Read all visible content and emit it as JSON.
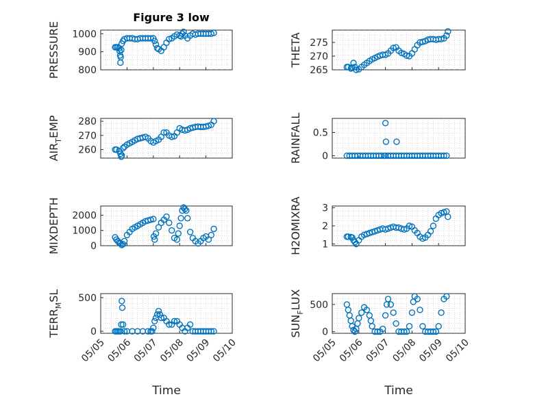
{
  "figure": {
    "title": "Figure 3 low",
    "marker_color": "#0072BD",
    "x_tick_labels": [
      "05/05",
      "05/06",
      "05/07",
      "05/08",
      "05/09",
      "05/10"
    ]
  },
  "chart_data": [
    {
      "type": "scatter",
      "title": "Figure 3 low",
      "ylabel": "PRESSURE",
      "xlabel": "",
      "xlim": [
        "05/05",
        "05/10"
      ],
      "ylim": [
        800,
        1020
      ],
      "yticks": [
        800,
        900,
        1000
      ],
      "grid": true,
      "series": [
        {
          "marker": "circle",
          "x": [
            5.55,
            5.6,
            5.65,
            5.7,
            5.72,
            5.74,
            5.75,
            5.76,
            5.78,
            5.8,
            5.85,
            5.9,
            6.0,
            6.1,
            6.2,
            6.3,
            6.4,
            6.5,
            6.6,
            6.7,
            6.8,
            6.9,
            7.0,
            7.05,
            7.1,
            7.15,
            7.2,
            7.3,
            7.4,
            7.5,
            7.6,
            7.7,
            7.8,
            7.9,
            8.0,
            8.05,
            8.1,
            8.15,
            8.2,
            8.3,
            8.4,
            8.5,
            8.6,
            8.7,
            8.8,
            8.9,
            9.0,
            9.1,
            9.2,
            9.3
          ],
          "y": [
            925,
            925,
            925,
            920,
            905,
            880,
            840,
            870,
            910,
            945,
            960,
            970,
            975,
            975,
            975,
            970,
            970,
            975,
            975,
            975,
            975,
            975,
            975,
            960,
            940,
            920,
            915,
            905,
            925,
            950,
            970,
            975,
            985,
            995,
            990,
            985,
            1000,
            1010,
            990,
            975,
            990,
            1000,
            995,
            1000,
            1000,
            1000,
            1000,
            1000,
            1000,
            1005
          ]
        }
      ]
    },
    {
      "type": "scatter",
      "ylabel": "THETA",
      "xlabel": "",
      "xlim": [
        "05/05",
        "05/10"
      ],
      "ylim": [
        265,
        279.5
      ],
      "yticks": [
        265,
        270,
        275
      ],
      "grid": true,
      "series": [
        {
          "marker": "circle",
          "x": [
            5.55,
            5.6,
            5.7,
            5.75,
            5.8,
            5.85,
            5.9,
            6.0,
            6.1,
            6.2,
            6.3,
            6.4,
            6.5,
            6.6,
            6.7,
            6.8,
            6.9,
            7.0,
            7.1,
            7.2,
            7.3,
            7.4,
            7.5,
            7.6,
            7.7,
            7.8,
            7.9,
            8.0,
            8.1,
            8.2,
            8.3,
            8.4,
            8.5,
            8.6,
            8.7,
            8.8,
            8.9,
            9.0,
            9.1,
            9.2,
            9.3,
            9.35
          ],
          "y": [
            266,
            266,
            265.5,
            265.8,
            267.5,
            266,
            265,
            265.2,
            266,
            266.8,
            267.5,
            268.2,
            268.8,
            269.3,
            269.8,
            270.2,
            270.5,
            270.5,
            271,
            272,
            273,
            273.2,
            272,
            271.2,
            270.8,
            270.2,
            270,
            271,
            272.5,
            274,
            275,
            275.2,
            275.5,
            276,
            276.2,
            276.2,
            276,
            276.2,
            276.2,
            276.5,
            277.5,
            279
          ]
        }
      ]
    },
    {
      "type": "scatter",
      "ylabel": "AIR_TEMP",
      "xlabel": "",
      "xlim": [
        "05/05",
        "05/10"
      ],
      "ylim": [
        254,
        282
      ],
      "yticks": [
        260,
        270,
        280
      ],
      "grid": true,
      "series": [
        {
          "marker": "circle",
          "x": [
            5.55,
            5.6,
            5.7,
            5.75,
            5.78,
            5.8,
            5.85,
            5.9,
            6.0,
            6.1,
            6.2,
            6.3,
            6.4,
            6.5,
            6.6,
            6.7,
            6.8,
            6.9,
            7.0,
            7.1,
            7.2,
            7.3,
            7.4,
            7.5,
            7.6,
            7.7,
            7.8,
            7.9,
            8.0,
            8.1,
            8.2,
            8.3,
            8.4,
            8.5,
            8.6,
            8.7,
            8.8,
            8.9,
            9.0,
            9.1,
            9.2,
            9.3
          ],
          "y": [
            260,
            260,
            259,
            257,
            255,
            256,
            261,
            262,
            263.5,
            264.5,
            265.5,
            266.5,
            267.5,
            268,
            268.5,
            269,
            268,
            266,
            265,
            266,
            267,
            269,
            272,
            272,
            270,
            269,
            269.5,
            272,
            275,
            274,
            273.5,
            274,
            275,
            275.5,
            276,
            276.2,
            276,
            276,
            276.3,
            276.8,
            277.5,
            280
          ]
        }
      ]
    },
    {
      "type": "scatter",
      "ylabel": "RAINFALL",
      "xlabel": "",
      "xlim": [
        "05/05",
        "05/10"
      ],
      "ylim": [
        -0.05,
        0.8
      ],
      "yticks": [
        0,
        0.5
      ],
      "grid": true,
      "series": [
        {
          "marker": "circle",
          "x": [
            5.55,
            5.65,
            5.75,
            5.85,
            5.95,
            6.05,
            6.15,
            6.25,
            6.35,
            6.45,
            6.55,
            6.65,
            6.75,
            6.85,
            6.95,
            7.0,
            7.0,
            7.02,
            7.1,
            7.2,
            7.3,
            7.4,
            7.42,
            7.5,
            7.6,
            7.7,
            7.8,
            7.9,
            8.0,
            8.1,
            8.2,
            8.3,
            8.4,
            8.5,
            8.6,
            8.7,
            8.8,
            8.9,
            9.0,
            9.1,
            9.2,
            9.3
          ],
          "y": [
            0,
            0,
            0,
            0,
            0,
            0,
            0,
            0,
            0,
            0,
            0,
            0,
            0,
            0,
            0,
            0,
            0.7,
            0.3,
            0,
            0,
            0,
            0,
            0.3,
            0,
            0,
            0,
            0,
            0,
            0,
            0,
            0,
            0,
            0,
            0,
            0,
            0,
            0,
            0,
            0,
            0,
            0,
            0
          ]
        }
      ]
    },
    {
      "type": "scatter",
      "ylabel": "MIXDEPTH",
      "xlabel": "",
      "xlim": [
        "05/05",
        "05/10"
      ],
      "ylim": [
        0,
        2600
      ],
      "yticks": [
        0,
        1000,
        2000
      ],
      "grid": true,
      "series": [
        {
          "marker": "circle",
          "x": [
            5.55,
            5.6,
            5.65,
            5.7,
            5.75,
            5.8,
            5.85,
            5.9,
            6.0,
            6.1,
            6.2,
            6.3,
            6.4,
            6.5,
            6.6,
            6.7,
            6.8,
            6.9,
            7.0,
            7.02,
            7.05,
            7.1,
            7.2,
            7.3,
            7.4,
            7.5,
            7.6,
            7.7,
            7.8,
            7.9,
            7.95,
            8.0,
            8.05,
            8.1,
            8.15,
            8.2,
            8.25,
            8.3,
            8.4,
            8.5,
            8.6,
            8.7,
            8.8,
            8.9,
            9.0,
            9.1,
            9.2,
            9.3
          ],
          "y": [
            550,
            400,
            300,
            200,
            150,
            50,
            100,
            300,
            700,
            900,
            1100,
            1200,
            1300,
            1400,
            1500,
            1600,
            1650,
            1700,
            1750,
            600,
            400,
            800,
            1200,
            1500,
            1700,
            1900,
            1500,
            1000,
            500,
            400,
            800,
            1300,
            1800,
            2300,
            2500,
            2400,
            2300,
            1800,
            900,
            500,
            300,
            150,
            300,
            500,
            600,
            400,
            700,
            1100
          ]
        }
      ]
    },
    {
      "type": "scatter",
      "ylabel": "H2OMIXRA",
      "xlabel": "",
      "xlim": [
        "05/05",
        "05/10"
      ],
      "ylim": [
        0.9,
        3.1
      ],
      "yticks": [
        1,
        2,
        3
      ],
      "grid": true,
      "series": [
        {
          "marker": "circle",
          "x": [
            5.55,
            5.6,
            5.7,
            5.75,
            5.8,
            5.85,
            5.9,
            6.0,
            6.1,
            6.2,
            6.3,
            6.4,
            6.5,
            6.6,
            6.7,
            6.8,
            6.9,
            7.0,
            7.1,
            7.2,
            7.3,
            7.4,
            7.5,
            7.6,
            7.7,
            7.8,
            7.9,
            8.0,
            8.1,
            8.2,
            8.3,
            8.4,
            8.5,
            8.6,
            8.7,
            8.8,
            8.9,
            9.0,
            9.1,
            9.2,
            9.3,
            9.35
          ],
          "y": [
            1.4,
            1.4,
            1.38,
            1.35,
            1.2,
            1.1,
            1.0,
            1.2,
            1.4,
            1.5,
            1.55,
            1.6,
            1.65,
            1.7,
            1.75,
            1.8,
            1.85,
            1.8,
            1.85,
            1.9,
            1.95,
            1.9,
            1.9,
            1.85,
            1.8,
            1.85,
            2.0,
            1.95,
            1.75,
            1.6,
            1.4,
            1.3,
            1.35,
            1.5,
            1.7,
            2.0,
            2.4,
            2.6,
            2.7,
            2.75,
            2.8,
            2.5
          ]
        }
      ]
    },
    {
      "type": "scatter",
      "ylabel": "TERR_MSL",
      "xlabel": "Time",
      "xlim": [
        "05/05",
        "05/10"
      ],
      "ylim": [
        -30,
        560
      ],
      "yticks": [
        0,
        500
      ],
      "grid": true,
      "series": [
        {
          "marker": "circle",
          "x": [
            5.55,
            5.6,
            5.65,
            5.7,
            5.75,
            5.78,
            5.8,
            5.82,
            5.85,
            5.9,
            6.0,
            6.2,
            6.4,
            6.6,
            6.8,
            6.9,
            6.95,
            7.0,
            7.05,
            7.1,
            7.15,
            7.2,
            7.25,
            7.3,
            7.4,
            7.5,
            7.6,
            7.7,
            7.8,
            7.9,
            8.0,
            8.1,
            8.2,
            8.3,
            8.4,
            8.5,
            8.6,
            8.7,
            8.8,
            8.9,
            9.0,
            9.1,
            9.2,
            9.3
          ],
          "y": [
            0,
            0,
            0,
            0,
            0,
            100,
            450,
            350,
            100,
            0,
            0,
            0,
            0,
            0,
            0,
            0,
            0,
            50,
            150,
            200,
            250,
            300,
            250,
            200,
            200,
            150,
            100,
            100,
            150,
            150,
            100,
            50,
            0,
            50,
            100,
            0,
            0,
            0,
            0,
            0,
            0,
            0,
            0,
            0
          ]
        }
      ]
    },
    {
      "type": "scatter",
      "ylabel": "SUN_FLUX",
      "xlabel": "Time",
      "xlim": [
        "05/05",
        "05/10"
      ],
      "ylim": [
        -30,
        700
      ],
      "yticks": [
        0,
        500
      ],
      "grid": true,
      "series": [
        {
          "marker": "circle",
          "x": [
            5.55,
            5.6,
            5.65,
            5.7,
            5.75,
            5.8,
            5.85,
            5.9,
            5.95,
            6.0,
            6.1,
            6.2,
            6.3,
            6.4,
            6.45,
            6.5,
            6.6,
            6.7,
            6.8,
            6.9,
            7.0,
            7.05,
            7.1,
            7.2,
            7.3,
            7.4,
            7.5,
            7.6,
            7.7,
            7.8,
            7.9,
            8.0,
            8.05,
            8.1,
            8.2,
            8.3,
            8.4,
            8.5,
            8.6,
            8.7,
            8.8,
            8.9,
            9.0,
            9.1,
            9.2,
            9.3
          ],
          "y": [
            500,
            400,
            300,
            200,
            100,
            30,
            0,
            50,
            150,
            250,
            350,
            450,
            400,
            300,
            200,
            100,
            0,
            0,
            0,
            50,
            300,
            500,
            600,
            500,
            350,
            150,
            0,
            0,
            0,
            0,
            100,
            350,
            550,
            650,
            600,
            400,
            100,
            0,
            0,
            0,
            0,
            0,
            100,
            350,
            600,
            650
          ]
        }
      ]
    }
  ]
}
